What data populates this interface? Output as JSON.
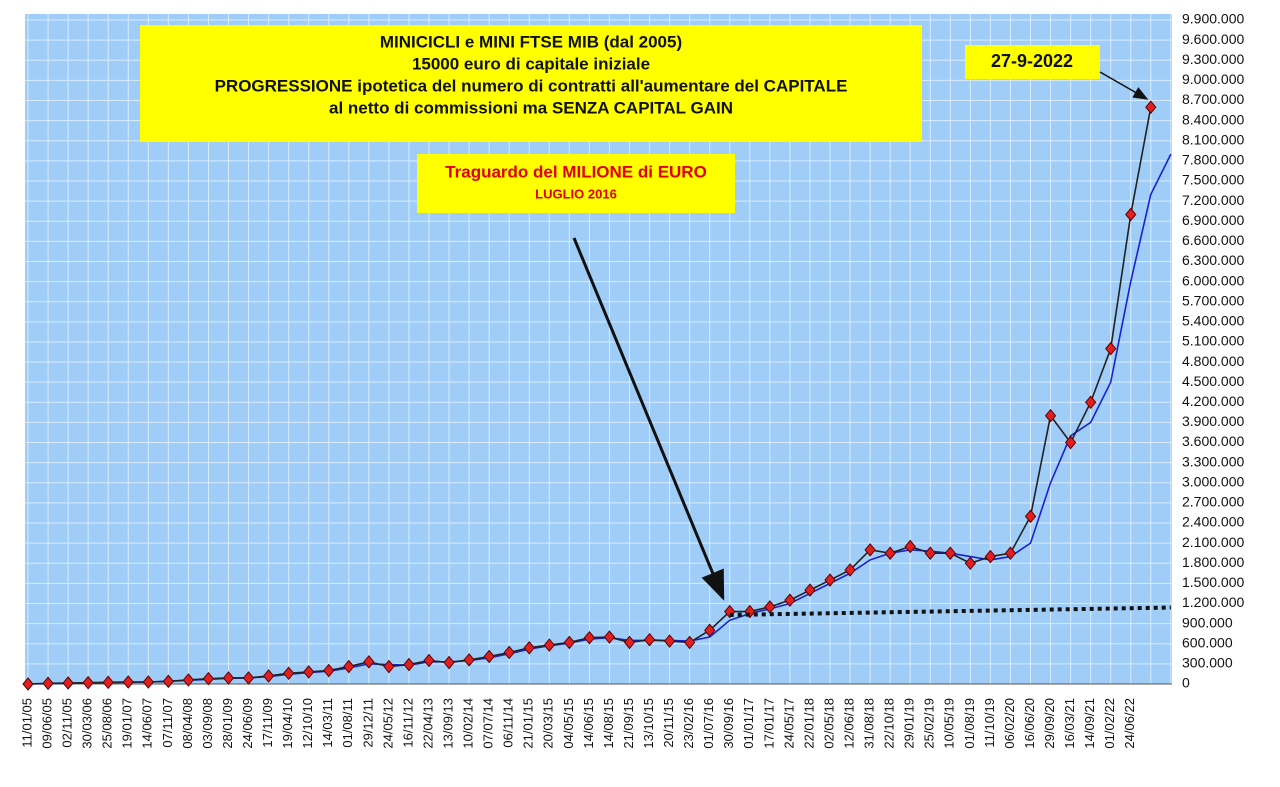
{
  "chart_data": {
    "type": "line",
    "title_lines": [
      "MINICICLI e MINI FTSE MIB (dal 2005)",
      "15000 euro di capitale iniziale",
      "PROGRESSIONE ipotetica del numero di contratti all'aumentare del CAPITALE",
      "al netto di commissioni ma SENZA CAPITAL GAIN"
    ],
    "annotations": {
      "milestone": "Traguardo del MILIONE di EURO",
      "milestone_date": "LUGLIO 2016",
      "end_date": "27-9-2022"
    },
    "categories": [
      "11/01/05",
      "09/06/05",
      "02/11/05",
      "30/03/06",
      "25/08/06",
      "19/01/07",
      "14/06/07",
      "07/11/07",
      "08/04/08",
      "03/09/08",
      "28/01/09",
      "24/06/09",
      "17/11/09",
      "19/04/10",
      "12/10/10",
      "14/03/11",
      "01/08/11",
      "29/12/11",
      "24/05/12",
      "16/11/12",
      "22/04/13",
      "13/09/13",
      "10/02/14",
      "07/07/14",
      "06/11/14",
      "21/01/15",
      "20/03/15",
      "04/05/15",
      "14/06/15",
      "14/08/15",
      "21/09/15",
      "13/10/15",
      "20/11/15",
      "23/02/16",
      "01/07/16",
      "30/09/16",
      "01/01/17",
      "17/01/17",
      "24/05/17",
      "22/01/18",
      "02/05/18",
      "12/06/18",
      "31/08/18",
      "22/10/18",
      "29/01/19",
      "25/02/19",
      "10/05/19",
      "01/08/19",
      "11/10/19",
      "06/02/20",
      "16/06/20",
      "29/09/20",
      "16/03/21",
      "14/09/21",
      "01/02/22",
      "24/06/22",
      null,
      null
    ],
    "series": [
      {
        "color": "#e02020",
        "marker": "diamond",
        "values": [
          0,
          10000,
          15000,
          20000,
          25000,
          30000,
          30000,
          40000,
          60000,
          80000,
          90000,
          90000,
          120000,
          160000,
          180000,
          200000,
          260000,
          330000,
          260000,
          290000,
          350000,
          320000,
          360000,
          410000,
          470000,
          540000,
          580000,
          620000,
          690000,
          700000,
          620000,
          660000,
          640000,
          620000,
          800000,
          1080000,
          1080000,
          1150000,
          1250000,
          1400000,
          1550000,
          1700000,
          2000000,
          1950000,
          2050000,
          1950000,
          1950000,
          1800000,
          1900000,
          1950000,
          2500000,
          4000000,
          3600000,
          4200000,
          5000000,
          7000000,
          8600000,
          null
        ]
      },
      {
        "color": "#1a22d0",
        "values": [
          0,
          5000,
          10000,
          15000,
          20000,
          25000,
          30000,
          40000,
          55000,
          70000,
          85000,
          90000,
          110000,
          145000,
          170000,
          190000,
          240000,
          300000,
          290000,
          280000,
          330000,
          330000,
          350000,
          390000,
          450000,
          520000,
          570000,
          610000,
          670000,
          690000,
          650000,
          650000,
          650000,
          640000,
          700000,
          950000,
          1050000,
          1120000,
          1200000,
          1350000,
          1500000,
          1650000,
          1850000,
          1950000,
          2000000,
          1980000,
          1950000,
          1900000,
          1850000,
          1900000,
          2100000,
          3000000,
          3700000,
          3900000,
          4500000,
          6000000,
          7300000,
          7900000
        ]
      },
      {
        "color": "#111111",
        "dash": true,
        "values": [
          null,
          null,
          null,
          null,
          null,
          null,
          null,
          null,
          null,
          null,
          null,
          null,
          null,
          null,
          null,
          null,
          null,
          null,
          null,
          null,
          null,
          null,
          null,
          null,
          null,
          null,
          null,
          null,
          null,
          null,
          null,
          null,
          null,
          null,
          null,
          1030000,
          1035000,
          1040000,
          1045000,
          1050000,
          1055000,
          1060000,
          1065000,
          1070000,
          1075000,
          1080000,
          1085000,
          1090000,
          1095000,
          1100000,
          1105000,
          1110000,
          1115000,
          1120000,
          1125000,
          1130000,
          1135000,
          1140000
        ]
      }
    ],
    "ylim": [
      0,
      9900000
    ],
    "yticks": [
      0,
      {
        "value": 300000,
        "label": "300.000"
      },
      {
        "value": 600000,
        "label": "600.000"
      },
      {
        "value": 900000,
        "label": "900.000"
      },
      {
        "value": 1200000,
        "label": "1.200.000"
      },
      {
        "value": 1500000,
        "label": "1.500.000"
      },
      {
        "value": 1800000,
        "label": "1.800.000"
      },
      {
        "value": 2100000,
        "label": "2.100.000"
      },
      {
        "value": 2400000,
        "label": "2.400.000"
      },
      {
        "value": 2700000,
        "label": "2.700.000"
      },
      {
        "value": 3000000,
        "label": "3.000.000"
      },
      {
        "value": 3300000,
        "label": "3.300.000"
      },
      {
        "value": 3600000,
        "label": "3.600.000"
      },
      {
        "value": 3900000,
        "label": "3.900.000"
      },
      {
        "value": 4200000,
        "label": "4.200.000"
      },
      {
        "value": 4500000,
        "label": "4.500.000"
      },
      {
        "value": 4800000,
        "label": "4.800.000"
      },
      {
        "value": 5100000,
        "label": "5.100.000"
      },
      {
        "value": 5400000,
        "label": "5.400.000"
      },
      {
        "value": 5700000,
        "label": "5.700.000"
      },
      {
        "value": 6000000,
        "label": "6.000.000"
      },
      {
        "value": 6300000,
        "label": "6.300.000"
      },
      {
        "value": 6600000,
        "label": "6.600.000"
      },
      {
        "value": 6900000,
        "label": "6.900.000"
      },
      {
        "value": 7200000,
        "label": "7.200.000"
      },
      {
        "value": 7500000,
        "label": "7.500.000"
      },
      {
        "value": 7800000,
        "label": "7.800.000"
      },
      {
        "value": 8100000,
        "label": "8.100.000"
      },
      {
        "value": 8400000,
        "label": "8.400.000"
      },
      {
        "value": 8700000,
        "label": "8.700.000"
      },
      {
        "value": 9000000,
        "label": "9.000.000"
      },
      {
        "value": 9300000,
        "label": "9.300.000"
      },
      {
        "value": 9600000,
        "label": "9.600.000"
      },
      {
        "value": 9900000,
        "label": "9.900.000"
      }
    ],
    "grid": true,
    "background": "#9fcdf7"
  }
}
